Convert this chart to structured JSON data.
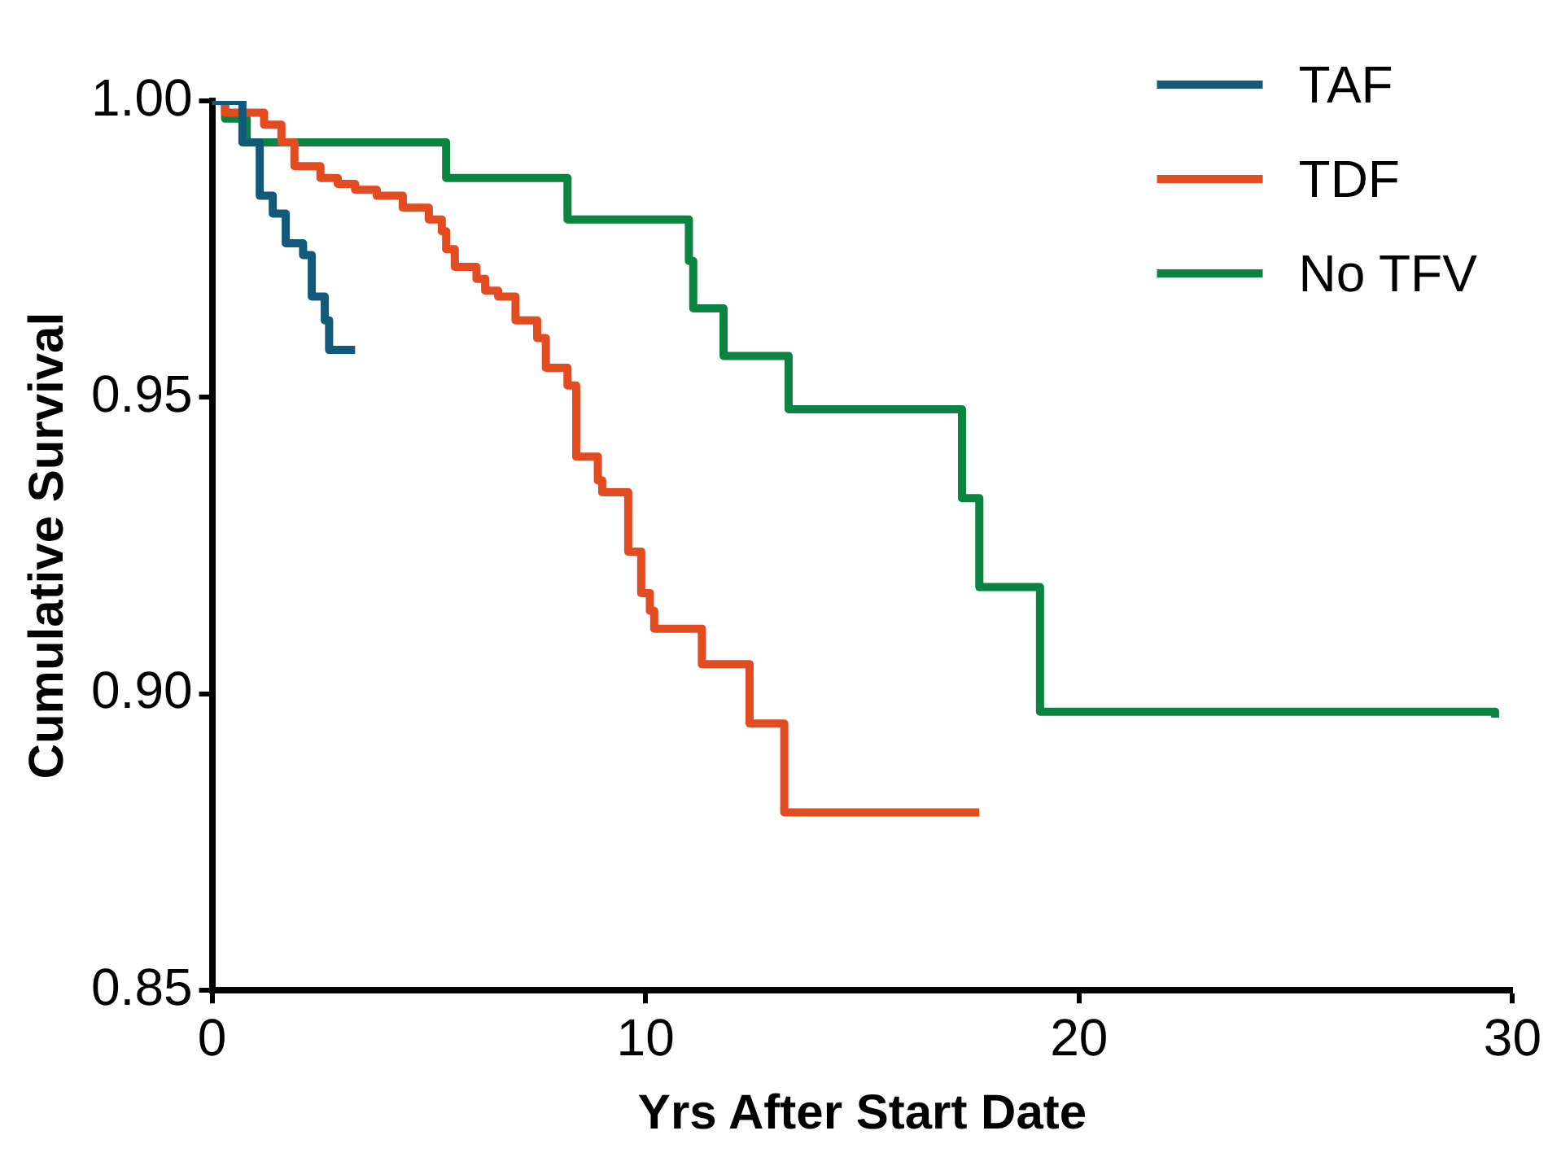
{
  "chart_data": {
    "type": "step",
    "xlabel": "Yrs After Start Date",
    "ylabel": "Cumulative Survival",
    "xlim": [
      0,
      30
    ],
    "xticks": [
      0,
      10,
      20,
      30
    ],
    "ylim": [
      0.85,
      1.0
    ],
    "yticks": [
      0.85,
      {
        "value": 0.9,
        "label": "0.90"
      },
      0.95,
      {
        "value": 1.0,
        "label": "1.00"
      }
    ],
    "grid": false,
    "legend": "top right",
    "marker": "none",
    "line_style": "solid",
    "series": [
      {
        "name": "TAF",
        "color": "#135a7a",
        "x": [
          0,
          0.7,
          1.1,
          1.4,
          1.7,
          2.1,
          2.3,
          2.6,
          2.7,
          3.3
        ],
        "values": [
          1.0,
          0.993,
          0.984,
          0.981,
          0.976,
          0.974,
          0.967,
          0.963,
          0.958,
          0.958
        ]
      },
      {
        "name": "TDF",
        "color": "#e34b20",
        "x": [
          0,
          0.3,
          1.2,
          1.6,
          1.9,
          2.5,
          2.9,
          3.3,
          3.8,
          4.4,
          5.0,
          5.3,
          5.4,
          5.6,
          6.1,
          6.3,
          6.6,
          7.0,
          7.5,
          7.7,
          8.2,
          8.4,
          8.9,
          9.0,
          9.6,
          9.9,
          10.1,
          10.2,
          11.3,
          12.4,
          13.2,
          17.7
        ],
        "values": [
          1.0,
          0.998,
          0.996,
          0.993,
          0.989,
          0.987,
          0.986,
          0.985,
          0.984,
          0.982,
          0.98,
          0.978,
          0.975,
          0.972,
          0.97,
          0.968,
          0.967,
          0.963,
          0.96,
          0.955,
          0.952,
          0.94,
          0.936,
          0.934,
          0.924,
          0.917,
          0.914,
          0.911,
          0.905,
          0.895,
          0.88,
          0.88
        ]
      },
      {
        "name": "No TFV",
        "color": "#0a8440",
        "x": [
          0,
          0.3,
          0.8,
          5.4,
          8.2,
          11.0,
          11.1,
          11.8,
          13.3,
          17.3,
          17.7,
          19.1,
          29.6
        ],
        "values": [
          1.0,
          0.997,
          0.993,
          0.987,
          0.98,
          0.973,
          0.965,
          0.957,
          0.948,
          0.933,
          0.918,
          0.897,
          0.896
        ]
      }
    ]
  }
}
